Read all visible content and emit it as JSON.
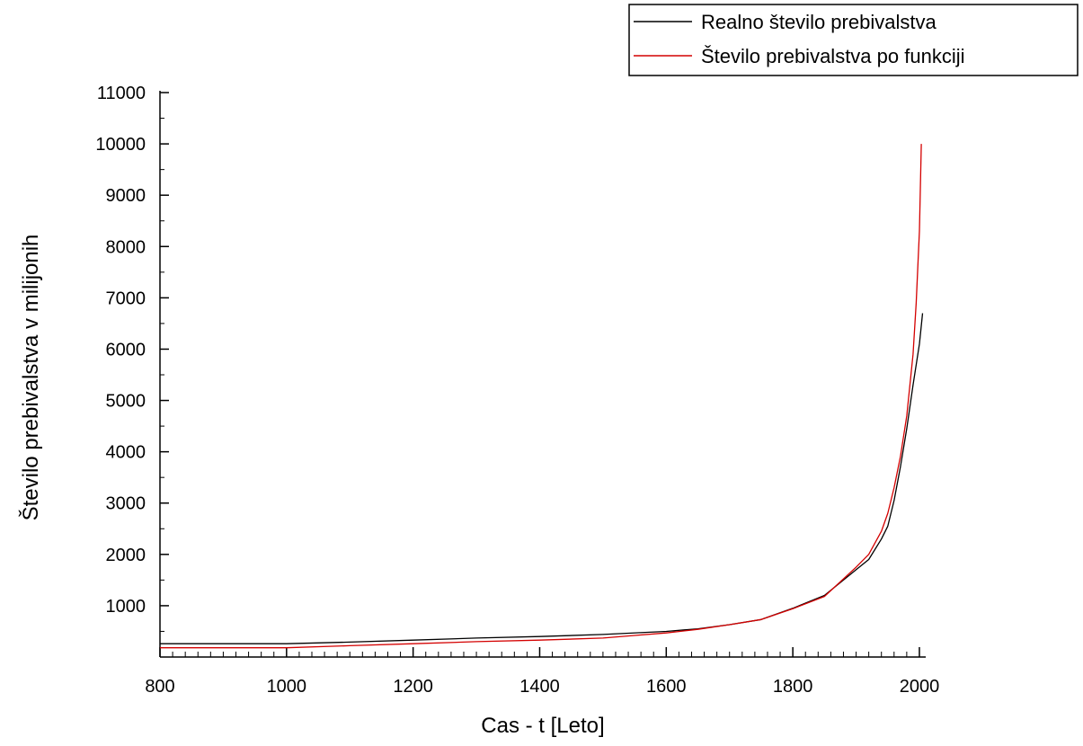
{
  "chart_data": {
    "type": "line",
    "xlabel": "Cas - t [Leto]",
    "ylabel": "Število prebivalstva v milijonih",
    "xlim": [
      800,
      2010
    ],
    "ylim": [
      0,
      11000
    ],
    "x_ticks": [
      800,
      1000,
      1200,
      1400,
      1600,
      1800,
      2000
    ],
    "y_ticks": [
      1000,
      2000,
      3000,
      4000,
      5000,
      6000,
      7000,
      8000,
      9000,
      10000,
      11000
    ],
    "legend_position": "top-right",
    "grid": false,
    "series": [
      {
        "name": "Realno število prebivalstva",
        "color": "#000000",
        "x": [
          800,
          1000,
          1100,
          1200,
          1300,
          1400,
          1500,
          1600,
          1650,
          1700,
          1750,
          1800,
          1850,
          1900,
          1920,
          1940,
          1950,
          1960,
          1970,
          1980,
          1990,
          2000,
          2005
        ],
        "y": [
          260,
          260,
          290,
          330,
          370,
          400,
          440,
          500,
          550,
          630,
          730,
          950,
          1200,
          1700,
          1900,
          2300,
          2550,
          3050,
          3700,
          4450,
          5300,
          6100,
          6700
        ]
      },
      {
        "name": "Število prebivalstva po funkciji",
        "color": "#d40000",
        "x": [
          800,
          1000,
          1100,
          1200,
          1300,
          1400,
          1500,
          1550,
          1600,
          1650,
          1700,
          1750,
          1800,
          1850,
          1900,
          1920,
          1940,
          1950,
          1960,
          1970,
          1980,
          1990,
          1995,
          2000,
          2003
        ],
        "y": [
          180,
          180,
          220,
          260,
          300,
          330,
          370,
          420,
          470,
          540,
          630,
          730,
          940,
          1180,
          1750,
          2000,
          2450,
          2800,
          3300,
          3900,
          4700,
          5900,
          6900,
          8300,
          10000
        ]
      }
    ]
  }
}
